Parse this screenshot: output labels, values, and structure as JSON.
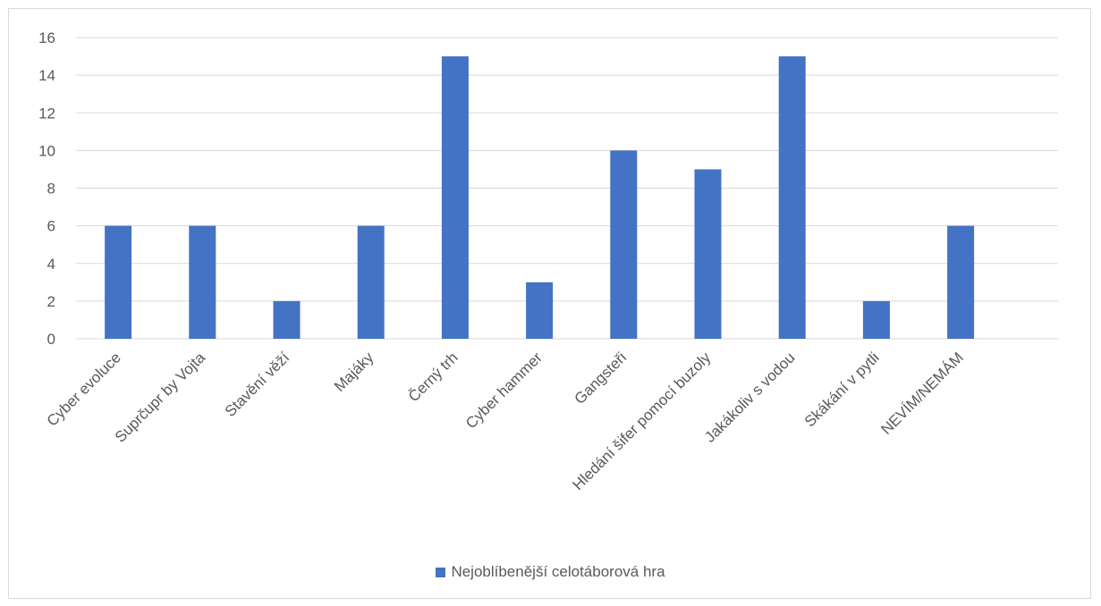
{
  "chart_data": {
    "type": "bar",
    "categories": [
      "Cyber evoluce",
      "Suprčupr by Vojta",
      "Stavění věží",
      "Majáky",
      "Černý trh",
      "Cyber hammer",
      "Gangsteři",
      "Hledání šifer pomocí buzoly",
      "Jakákoliv s vodou",
      "Skákání v pytli",
      "NEVÍM/NEMÁM"
    ],
    "series": [
      {
        "name": "Nejoblíbenější celotáborová hra",
        "values": [
          6,
          6,
          2,
          6,
          15,
          3,
          10,
          9,
          15,
          2,
          6
        ],
        "color": "#4472c4"
      }
    ],
    "ylim": [
      0,
      16
    ],
    "yticks": [
      0,
      2,
      4,
      6,
      8,
      10,
      12,
      14,
      16
    ],
    "grid": true,
    "legend_position": "bottom",
    "title": "",
    "xlabel": "",
    "ylabel": ""
  }
}
